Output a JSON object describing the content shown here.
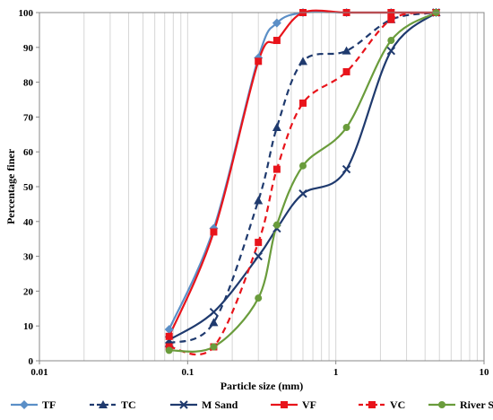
{
  "chart_data": {
    "type": "line",
    "title": "",
    "xlabel": "Particle size (mm)",
    "ylabel": "Percentage  finer",
    "xscale": "log",
    "xlim": [
      0.01,
      10
    ],
    "ylim": [
      0,
      100
    ],
    "xticks": [
      0.01,
      0.1,
      1,
      10
    ],
    "xtick_labels": [
      "0.01",
      "0.1",
      "1",
      "10"
    ],
    "yticks": [
      0,
      10,
      20,
      30,
      40,
      50,
      60,
      70,
      80,
      90,
      100
    ],
    "grid": "vertical minor log grid lines",
    "legend_position": "bottom",
    "series": [
      {
        "name": "TF",
        "color": "#5b8fc7",
        "dash": "solid",
        "marker": "diamond",
        "x": [
          0.075,
          0.15,
          0.3,
          0.4,
          0.6,
          1.18,
          2.36,
          4.75
        ],
        "y": [
          9,
          38,
          87,
          97,
          100,
          100,
          100,
          100
        ]
      },
      {
        "name": "TC",
        "color": "#1f3a6e",
        "dash": "dashed",
        "marker": "triangle",
        "x": [
          0.075,
          0.15,
          0.3,
          0.4,
          0.6,
          1.18,
          2.36,
          4.75
        ],
        "y": [
          5,
          11,
          46,
          67,
          86,
          89,
          98,
          100
        ]
      },
      {
        "name": "M Sand",
        "color": "#1f3a6e",
        "dash": "solid",
        "marker": "x",
        "x": [
          0.075,
          0.15,
          0.3,
          0.4,
          0.6,
          1.18,
          2.36,
          4.75
        ],
        "y": [
          6,
          14,
          30,
          38,
          48,
          55,
          89,
          100
        ]
      },
      {
        "name": "VF",
        "color": "#e8141b",
        "dash": "solid",
        "marker": "square",
        "x": [
          0.075,
          0.15,
          0.3,
          0.4,
          0.6,
          1.18,
          2.36,
          4.75
        ],
        "y": [
          7,
          37,
          86,
          92,
          100,
          100,
          100,
          100
        ]
      },
      {
        "name": "VC",
        "color": "#e8141b",
        "dash": "dashed",
        "marker": "square",
        "x": [
          0.075,
          0.15,
          0.3,
          0.4,
          0.6,
          1.18,
          2.36,
          4.75
        ],
        "y": [
          4,
          4,
          34,
          55,
          74,
          83,
          98,
          100
        ]
      },
      {
        "name": "River Sand",
        "color": "#6a9c3c",
        "dash": "solid",
        "marker": "circle",
        "x": [
          0.075,
          0.15,
          0.3,
          0.4,
          0.6,
          1.18,
          2.36,
          4.75
        ],
        "y": [
          3,
          4,
          18,
          39,
          56,
          67,
          92,
          100
        ]
      }
    ]
  }
}
